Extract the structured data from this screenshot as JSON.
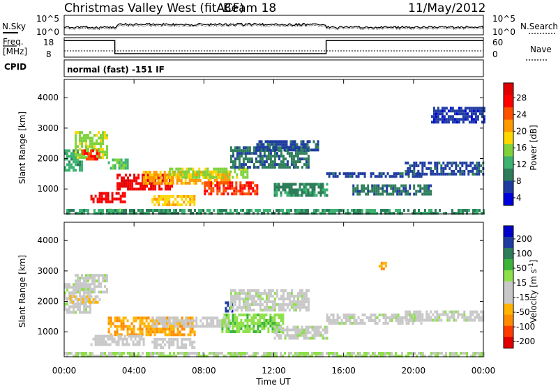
{
  "header": {
    "title": "Christmas Valley West (fitACF)",
    "beam": "Beam 18",
    "date": "11/May/2012"
  },
  "noise_panel": {
    "left_label": "N.Sky",
    "left_ticks": [
      "10^5",
      "10^0"
    ],
    "right_ticks": [
      "10^5",
      "10^0"
    ],
    "right_label": "N.Search"
  },
  "freq_panel": {
    "left_label_1": "Freq.",
    "left_label_2": "[MHz]",
    "left_ticks": [
      "18",
      "8"
    ],
    "right_ticks": [
      "60",
      "0"
    ],
    "right_label": "Nave"
  },
  "cpid": {
    "label": "CPID",
    "value": "normal (fast) -151 IF"
  },
  "colors": {
    "power": [
      "#0000dc",
      "#1e3ca0",
      "#2e7d5a",
      "#3cb371",
      "#7fd23c",
      "#ffd700",
      "#ff9900",
      "#ff5000",
      "#ff0000",
      "#e00000"
    ],
    "velocity": [
      "#e00000",
      "#ff3c00",
      "#ff8c00",
      "#ffb400",
      "#c8c8c8",
      "#c8c8c8",
      "#8ee04a",
      "#3cb43c",
      "#2e7d5a",
      "#1e3ca0",
      "#0000c8"
    ]
  },
  "chart_data": [
    {
      "type": "heatmap",
      "panel": "power",
      "ylabel": "Slant Range [km]",
      "yticks": [
        "4000",
        "3000",
        "2000",
        "1000"
      ],
      "ylim": [
        180,
        4600
      ],
      "xlim": [
        0,
        24
      ],
      "colorbar": {
        "label": "Power [dB]",
        "ticks": [
          "28",
          "24",
          "20",
          "16",
          "12",
          "8",
          "4"
        ],
        "range": [
          0,
          30
        ]
      },
      "regions": [
        {
          "t0": 0.0,
          "t1": 1.0,
          "r0": 1600,
          "r1": 2300,
          "value": 10
        },
        {
          "t0": 0.6,
          "t1": 2.4,
          "r0": 2000,
          "r1": 2900,
          "value": 14
        },
        {
          "t0": 1.0,
          "t1": 2.0,
          "r0": 2000,
          "r1": 2300,
          "value": 24
        },
        {
          "t0": 2.5,
          "t1": 3.6,
          "r0": 1700,
          "r1": 2000,
          "value": 12
        },
        {
          "t0": 3.0,
          "t1": 6.2,
          "r0": 1000,
          "r1": 1500,
          "value": 27
        },
        {
          "t0": 4.5,
          "t1": 9.5,
          "r0": 1200,
          "r1": 1600,
          "value": 19
        },
        {
          "t0": 6.0,
          "t1": 10.5,
          "r0": 1400,
          "r1": 1700,
          "value": 14
        },
        {
          "t0": 8.0,
          "t1": 11.0,
          "r0": 850,
          "r1": 1250,
          "value": 24
        },
        {
          "t0": 1.5,
          "t1": 3.5,
          "r0": 600,
          "r1": 900,
          "value": 26
        },
        {
          "t0": 5.0,
          "t1": 7.5,
          "r0": 500,
          "r1": 800,
          "value": 17
        },
        {
          "t0": 2.5,
          "t1": 3.5,
          "r0": 250,
          "r1": 350,
          "value": 15
        },
        {
          "t0": 9.5,
          "t1": 14.0,
          "r0": 1700,
          "r1": 2400,
          "value": 7
        },
        {
          "t0": 11.0,
          "t1": 14.5,
          "r0": 2300,
          "r1": 2600,
          "value": 5
        },
        {
          "t0": 12.0,
          "t1": 15.0,
          "r0": 800,
          "r1": 1200,
          "value": 8
        },
        {
          "t0": 15.0,
          "t1": 20.5,
          "r0": 1450,
          "r1": 1550,
          "value": 5
        },
        {
          "t0": 16.5,
          "t1": 21.0,
          "r0": 850,
          "r1": 1150,
          "value": 7
        },
        {
          "t0": 19.5,
          "t1": 24.0,
          "r0": 1500,
          "r1": 1900,
          "value": 5
        },
        {
          "t0": 21.0,
          "t1": 24.0,
          "r0": 3200,
          "r1": 3700,
          "value": 4
        },
        {
          "t0": 0.0,
          "t1": 24.0,
          "r0": 190,
          "r1": 340,
          "value": 9
        }
      ]
    },
    {
      "type": "heatmap",
      "panel": "velocity",
      "ylabel": "Slant Range [km]",
      "xlabel": "Time UT",
      "yticks": [
        "4000",
        "3000",
        "2000",
        "1000"
      ],
      "xticks": [
        "00:00",
        "04:00",
        "08:00",
        "12:00",
        "16:00",
        "20:00",
        "00:00"
      ],
      "ylim": [
        180,
        4600
      ],
      "xlim": [
        0,
        24
      ],
      "colorbar": {
        "label": "Velocity [m s",
        "label_superscript": "-1",
        "label_close": "]",
        "ticks": [
          "200",
          "100",
          "50",
          "15",
          "-15",
          "-50",
          "-100",
          "-200"
        ],
        "range": [
          -250,
          250
        ]
      },
      "regions": [
        {
          "t0": 0.0,
          "t1": 1.5,
          "r0": 1600,
          "r1": 2600,
          "value": 0
        },
        {
          "t0": 0.6,
          "t1": 2.5,
          "r0": 2300,
          "r1": 2900,
          "value": 0
        },
        {
          "t0": 0.3,
          "t1": 2.0,
          "r0": 2000,
          "r1": 2200,
          "value": -60
        },
        {
          "t0": 2.5,
          "t1": 7.5,
          "r0": 950,
          "r1": 1500,
          "value": -110
        },
        {
          "t0": 5.0,
          "t1": 9.5,
          "r0": 1200,
          "r1": 1500,
          "value": -40
        },
        {
          "t0": 9.0,
          "t1": 12.5,
          "r0": 1000,
          "r1": 1600,
          "value": 55
        },
        {
          "t0": 9.2,
          "t1": 9.6,
          "r0": 1700,
          "r1": 2000,
          "value": 180
        },
        {
          "t0": 1.5,
          "t1": 4.5,
          "r0": 600,
          "r1": 900,
          "value": -30
        },
        {
          "t0": 5.0,
          "t1": 7.5,
          "r0": 500,
          "r1": 800,
          "value": -20
        },
        {
          "t0": 9.5,
          "t1": 14.0,
          "r0": 1700,
          "r1": 2400,
          "value": 0
        },
        {
          "t0": 12.0,
          "t1": 15.0,
          "r0": 800,
          "r1": 1200,
          "value": 0
        },
        {
          "t0": 15.0,
          "t1": 20.5,
          "r0": 1300,
          "r1": 1600,
          "value": 0
        },
        {
          "t0": 19.5,
          "t1": 24.0,
          "r0": 1400,
          "r1": 1700,
          "value": 0
        },
        {
          "t0": 18.0,
          "t1": 18.4,
          "r0": 3100,
          "r1": 3300,
          "value": -120
        },
        {
          "t0": 0.0,
          "t1": 24.0,
          "r0": 190,
          "r1": 340,
          "value": 30
        }
      ]
    },
    {
      "type": "line",
      "panel": "frequency",
      "x": [
        0,
        2.9,
        2.9,
        15.0,
        15.0,
        24
      ],
      "y": [
        16.5,
        16.5,
        9.8,
        9.8,
        16.5,
        16.5
      ],
      "ylim": [
        8,
        18
      ]
    }
  ]
}
